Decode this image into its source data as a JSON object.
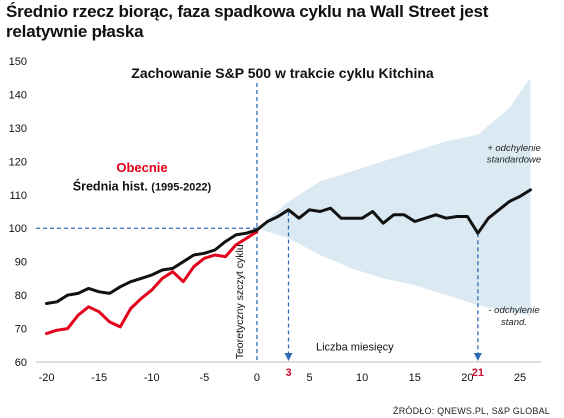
{
  "header": {
    "headline": "Średnio rzecz biorąc, faza spadkowa cyklu na Wall Street jest relatywnie płaska"
  },
  "footer": {
    "source": "ŹRÓDŁO: QNEWS.PL, S&P GLOBAL"
  },
  "chart_data": {
    "type": "line",
    "title": "Zachowanie S&P 500 w trakcie cyklu Kitchina",
    "xlabel": "Liczba miesięcy",
    "ylabel": "",
    "xlim": [
      -21,
      27
    ],
    "ylim": [
      60,
      150
    ],
    "xticks": [
      -20,
      -15,
      -10,
      -5,
      0,
      5,
      10,
      15,
      20,
      25
    ],
    "yticks": [
      60,
      70,
      80,
      90,
      100,
      110,
      120,
      130,
      140,
      150
    ],
    "grid": false,
    "legend": [
      {
        "label": "Obecnie",
        "color": "#e2001a"
      },
      {
        "label": "Średnia hist.",
        "note": "(1995-2022)",
        "color": "#111111"
      }
    ],
    "series": [
      {
        "name": "Obecnie",
        "color": "#e2001a",
        "x": [
          -20,
          -19,
          -18,
          -17,
          -16,
          -15,
          -14,
          -13,
          -12,
          -11,
          -10,
          -9,
          -8,
          -7,
          -6,
          -5,
          -4,
          -3,
          -2,
          -1,
          0
        ],
        "y": [
          68.5,
          69.5,
          70,
          74,
          76.5,
          75,
          72,
          70.5,
          76,
          79,
          81.5,
          85,
          87,
          84,
          88.5,
          91,
          92,
          91.5,
          95,
          97,
          99
        ]
      },
      {
        "name": "Średnia hist.",
        "color": "#111111",
        "x": [
          -20,
          -19,
          -18,
          -17,
          -16,
          -15,
          -14,
          -13,
          -12,
          -11,
          -10,
          -9,
          -8,
          -7,
          -6,
          -5,
          -4,
          -3,
          -2,
          -1,
          0,
          1,
          2,
          3,
          4,
          5,
          6,
          7,
          8,
          9,
          10,
          11,
          12,
          13,
          14,
          15,
          16,
          17,
          18,
          19,
          20,
          21,
          22,
          23,
          24,
          25,
          26
        ],
        "y": [
          77.5,
          78,
          80,
          80.5,
          82,
          81,
          80.5,
          82.5,
          84,
          85,
          86,
          87.5,
          88,
          90,
          92,
          92.5,
          93.5,
          96,
          98,
          98.5,
          99.5,
          102,
          103.5,
          105.5,
          103,
          105.5,
          105,
          106,
          103,
          103,
          103,
          105,
          101.5,
          104,
          104,
          102,
          103,
          104,
          103,
          103.5,
          103.5,
          98.5,
          103,
          105.5,
          108,
          109.5,
          111.5
        ]
      }
    ],
    "band": {
      "x": [
        0,
        3,
        6,
        9,
        12,
        15,
        18,
        21,
        24,
        26
      ],
      "upper": [
        100,
        108,
        114,
        117,
        120,
        123,
        126,
        128,
        136,
        145
      ],
      "lower": [
        100,
        97,
        92,
        88,
        85,
        83,
        80,
        77,
        75,
        74
      ],
      "color": "#dbe9f3",
      "upper_label": [
        "+ odchylenie",
        "standardowe"
      ],
      "lower_label": [
        "- odchylenie",
        "stand."
      ]
    },
    "annotations": {
      "peak_label": "Teoretyczny szczyt cyklu",
      "vline_x": 0,
      "hline_y": 100,
      "markers": [
        {
          "x": 3,
          "y": 105,
          "label": "3"
        },
        {
          "x": 21,
          "y": 98.5,
          "label": "21"
        }
      ]
    }
  }
}
